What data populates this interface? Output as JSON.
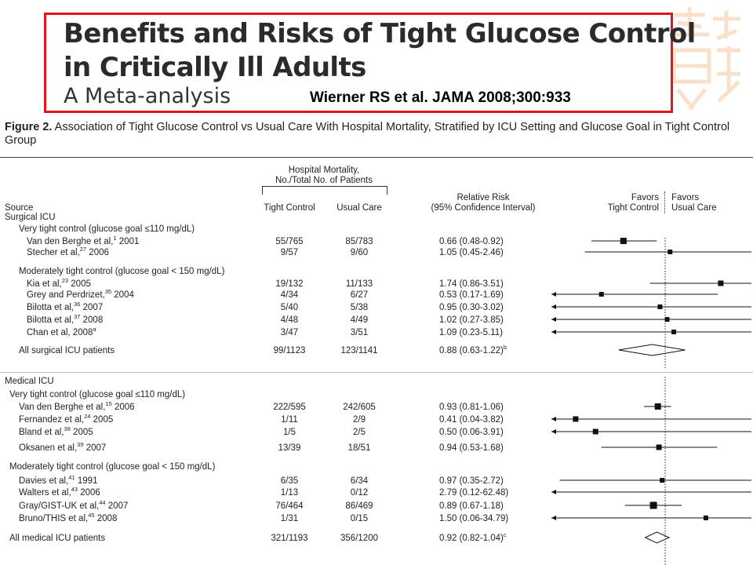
{
  "header": {
    "title_line1": "Benefits and Risks of Tight Glucose Control",
    "title_line2": "in Critically Ill Adults",
    "subtitle": "A Meta-analysis",
    "citation": "Wierner RS et al. JAMA 2008;300:933"
  },
  "figure": {
    "label": "Figure 2.",
    "caption": " Association of Tight Glucose Control vs Usual Care With Hospital Mortality, Stratified by ICU Setting and Glucose Goal in Tight Control Group"
  },
  "columns": {
    "mortality_header_line1": "Hospital Mortality,",
    "mortality_header_line2": "No./Total No. of Patients",
    "source": "Source",
    "tight": "Tight Control",
    "usual": "Usual Care",
    "rr_line1": "Relative Risk",
    "rr_line2": "(95% Confidence Interval)",
    "favors_left_line1": "Favors",
    "favors_left_line2": "Tight Control",
    "favors_right_line1": "Favors",
    "favors_right_line2": "Usual Care"
  },
  "chart_data": {
    "type": "forest",
    "x_reference": 1,
    "groups": [
      {
        "name": "Surgical ICU",
        "subgroups": [
          {
            "name": "Very tight control (glucose goal ≤110 mg/dL)",
            "studies": [
              {
                "source": "Van den Berghe et al,",
                "ref": "1",
                "year": " 2001",
                "tight": "55/765",
                "usual": "85/783",
                "rr_text": "0.66 (0.48-0.92)",
                "rr": 0.66,
                "lo": 0.48,
                "hi": 0.92,
                "weight": 8
              },
              {
                "source": "Stecher et al,",
                "ref": "27",
                "year": " 2006",
                "tight": "9/57",
                "usual": "9/60",
                "rr_text": "1.05 (0.45-2.46)",
                "rr": 1.05,
                "lo": 0.45,
                "hi": 2.46,
                "weight": 6
              }
            ]
          },
          {
            "name": "Moderately tight control (glucose goal < 150 mg/dL)",
            "studies": [
              {
                "source": "Kia et al,",
                "ref": "23",
                "year": " 2005",
                "tight": "19/132",
                "usual": "11/133",
                "rr_text": "1.74 (0.86-3.51)",
                "rr": 1.74,
                "lo": 0.86,
                "hi": 3.51,
                "weight": 7
              },
              {
                "source": "Grey and Perdrizet,",
                "ref": "35",
                "year": " 2004",
                "tight": "4/34",
                "usual": "6/27",
                "rr_text": "0.53 (0.17-1.69)",
                "rr": 0.53,
                "lo": 0.17,
                "hi": 1.69,
                "weight": 6
              },
              {
                "source": "Bilotta et al,",
                "ref": "36",
                "year": " 2007",
                "tight": "5/40",
                "usual": "5/38",
                "rr_text": "0.95 (0.30-3.02)",
                "rr": 0.95,
                "lo": 0.3,
                "hi": 3.02,
                "weight": 6
              },
              {
                "source": "Bilotta et al,",
                "ref": "37",
                "year": " 2008",
                "tight": "4/48",
                "usual": "4/49",
                "rr_text": "1.02 (0.27-3.85)",
                "rr": 1.02,
                "lo": 0.27,
                "hi": 3.85,
                "weight": 6
              },
              {
                "source": "Chan et al, 2008",
                "ref": "a",
                "year": "",
                "tight": "3/47",
                "usual": "3/51",
                "rr_text": "1.09 (0.23-5.11)",
                "rr": 1.09,
                "lo": 0.23,
                "hi": 5.11,
                "weight": 6
              }
            ]
          }
        ],
        "pooled": {
          "label": "All surgical ICU patients",
          "tight": "99/1123",
          "usual": "123/1141",
          "rr_text": "0.88 (0.63-1.22)",
          "note": "b",
          "rr": 0.88,
          "lo": 0.63,
          "hi": 1.22
        }
      },
      {
        "name": "Medical ICU",
        "subgroups": [
          {
            "name": "Very tight control (glucose goal ≤110 mg/dL)",
            "studies": [
              {
                "source": "Van den Berghe et al,",
                "ref": "15",
                "year": " 2006",
                "tight": "222/595",
                "usual": "242/605",
                "rr_text": "0.93 (0.81-1.06)",
                "rr": 0.93,
                "lo": 0.81,
                "hi": 1.06,
                "weight": 8
              },
              {
                "source": "Fernandez et al,",
                "ref": "24",
                "year": " 2005",
                "tight": "1/11",
                "usual": "2/9",
                "rr_text": "0.41 (0.04-3.82)",
                "rr": 0.41,
                "lo": 0.04,
                "hi": 3.82,
                "weight": 7
              },
              {
                "source": "Bland et al,",
                "ref": "38",
                "year": " 2005",
                "tight": "1/5",
                "usual": "2/5",
                "rr_text": "0.50 (0.06-3.91)",
                "rr": 0.5,
                "lo": 0.06,
                "hi": 3.91,
                "weight": 7
              },
              {
                "source": "Oksanen et al,",
                "ref": "39",
                "year": " 2007",
                "tight": "13/39",
                "usual": "18/51",
                "rr_text": "0.94 (0.53-1.68)",
                "rr": 0.94,
                "lo": 0.53,
                "hi": 1.68,
                "weight": 7
              }
            ]
          },
          {
            "name": "Moderately tight control (glucose goal < 150 mg/dL)",
            "studies": [
              {
                "source": "Davies et al,",
                "ref": "41",
                "year": " 1991",
                "tight": "6/35",
                "usual": "6/34",
                "rr_text": "0.97 (0.35-2.72)",
                "rr": 0.97,
                "lo": 0.35,
                "hi": 2.72,
                "weight": 6
              },
              {
                "source": "Walters et al,",
                "ref": "43",
                "year": " 2006",
                "tight": "1/13",
                "usual": "0/12",
                "rr_text": "2.79 (0.12-62.48)",
                "rr": 2.79,
                "lo": 0.12,
                "hi": 62.48,
                "weight": 6
              },
              {
                "source": "Gray/GIST-UK et al,",
                "ref": "44",
                "year": " 2007",
                "tight": "76/464",
                "usual": "86/469",
                "rr_text": "0.89 (0.67-1.18)",
                "rr": 0.89,
                "lo": 0.67,
                "hi": 1.18,
                "weight": 9
              },
              {
                "source": "Bruno/THIS et al,",
                "ref": "45",
                "year": " 2008",
                "tight": "1/31",
                "usual": "0/15",
                "rr_text": "1.50 (0.06-34.79)",
                "rr": 1.5,
                "lo": 0.06,
                "hi": 34.79,
                "weight": 6
              }
            ]
          }
        ],
        "pooled": {
          "label": "All medical ICU patients",
          "tight": "321/1193",
          "usual": "356/1200",
          "rr_text": "0.92 (0.82-1.04)",
          "note": "c",
          "rr": 0.92,
          "lo": 0.82,
          "hi": 1.04
        }
      }
    ]
  }
}
